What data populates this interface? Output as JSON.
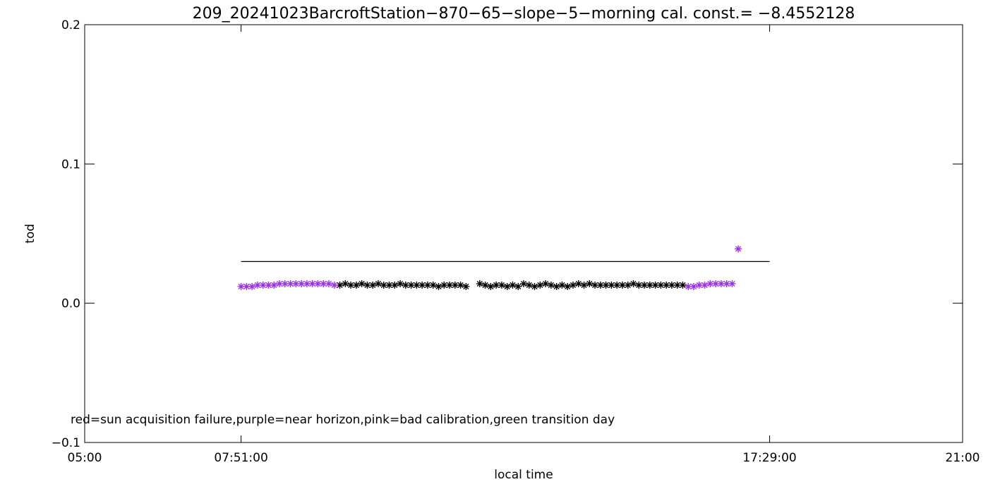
{
  "chart_data": {
    "type": "scatter",
    "title": "209_20241023BarcroftStation−870−65−slope−5−morning cal. const.= −8.4552128",
    "xlabel": "local time",
    "ylabel": "tod",
    "annotation": "red=sun acquisition failure,purple=near horizon,pink=bad calibration,green transition day",
    "xlim": [
      5,
      21
    ],
    "ylim": [
      -0.1,
      0.2
    ],
    "xticks": [
      {
        "value": 5,
        "label": "05:00"
      },
      {
        "value": 7.85,
        "label": "07:51:00"
      },
      {
        "value": 17.4833,
        "label": "17:29:00"
      },
      {
        "value": 21,
        "label": "21:00"
      }
    ],
    "yticks": [
      {
        "value": -0.1,
        "label": "−0.1"
      },
      {
        "value": 0,
        "label": "0.0"
      },
      {
        "value": 0.1,
        "label": "0.1"
      },
      {
        "value": 0.2,
        "label": "0.2"
      }
    ],
    "series": [
      {
        "style": "line",
        "color": "#000000",
        "x": [
          7.85,
          17.4833
        ],
        "values": [
          0.03,
          0.03
        ]
      },
      {
        "style": "asterisk",
        "color": "#000000",
        "x": [
          9.65,
          9.75,
          9.85,
          9.95,
          10.05,
          10.15,
          10.25,
          10.35,
          10.45,
          10.55,
          10.65,
          10.75,
          10.85,
          10.95,
          11.05,
          11.15,
          11.25,
          11.35,
          11.45,
          11.55,
          11.65,
          11.75,
          11.85,
          11.95,
          12.2,
          12.3,
          12.4,
          12.5,
          12.6,
          12.7,
          12.8,
          12.9,
          13.0,
          13.1,
          13.2,
          13.3,
          13.4,
          13.5,
          13.6,
          13.7,
          13.8,
          13.9,
          14.0,
          14.1,
          14.2,
          14.3,
          14.4,
          14.5,
          14.6,
          14.7,
          14.8,
          14.9,
          15.0,
          15.1,
          15.2,
          15.3,
          15.4,
          15.5,
          15.6,
          15.7,
          15.8,
          15.9
        ],
        "values": [
          0.013,
          0.014,
          0.013,
          0.013,
          0.014,
          0.013,
          0.013,
          0.014,
          0.013,
          0.013,
          0.013,
          0.014,
          0.013,
          0.013,
          0.013,
          0.013,
          0.013,
          0.013,
          0.012,
          0.013,
          0.013,
          0.013,
          0.013,
          0.012,
          0.014,
          0.013,
          0.012,
          0.013,
          0.013,
          0.012,
          0.013,
          0.012,
          0.014,
          0.013,
          0.012,
          0.013,
          0.014,
          0.013,
          0.012,
          0.013,
          0.012,
          0.013,
          0.014,
          0.013,
          0.014,
          0.013,
          0.013,
          0.013,
          0.013,
          0.013,
          0.013,
          0.013,
          0.014,
          0.013,
          0.013,
          0.013,
          0.013,
          0.013,
          0.013,
          0.013,
          0.013,
          0.013
        ]
      },
      {
        "style": "asterisk",
        "color": "#9a30e8",
        "x": [
          7.85,
          7.95,
          8.05,
          8.15,
          8.25,
          8.35,
          8.45,
          8.55,
          8.65,
          8.75,
          8.85,
          8.95,
          9.05,
          9.15,
          9.25,
          9.35,
          9.45,
          9.55,
          16.0,
          16.1,
          16.2,
          16.3,
          16.4,
          16.5,
          16.6,
          16.7,
          16.8,
          16.91
        ],
        "values": [
          0.012,
          0.012,
          0.012,
          0.013,
          0.013,
          0.013,
          0.013,
          0.014,
          0.014,
          0.014,
          0.014,
          0.014,
          0.014,
          0.014,
          0.014,
          0.014,
          0.014,
          0.013,
          0.012,
          0.012,
          0.013,
          0.013,
          0.014,
          0.014,
          0.014,
          0.014,
          0.014,
          0.039
        ]
      }
    ]
  }
}
